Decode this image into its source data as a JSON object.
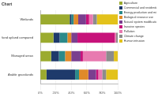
{
  "chart_data": {
    "type": "bar",
    "title": "Chart",
    "orientation": "horizontal",
    "stacked": true,
    "grid": true,
    "legend": "right",
    "categories": [
      "Wetlands",
      "Lowland upland compared",
      "Managed areas",
      "Arable grasslands"
    ],
    "series": [
      {
        "name": "Agriculture",
        "color": "#9bab2f",
        "values": [
          38,
          17,
          14,
          8
        ]
      },
      {
        "name": "Commercial and residential",
        "color": "#1e3a6b",
        "values": [
          2,
          8,
          10,
          37
        ]
      },
      {
        "name": "Energy production and mining",
        "color": "#2b8a8a",
        "values": [
          3,
          10,
          8,
          5
        ]
      },
      {
        "name": "Biological resource use",
        "color": "#e08a2a",
        "values": [
          6,
          5,
          8,
          12
        ]
      },
      {
        "name": "Natural system modifications",
        "color": "#7a3f8f",
        "values": [
          10,
          8,
          12,
          10
        ]
      },
      {
        "name": "Invasive species",
        "color": "#c7127a",
        "values": [
          4,
          48,
          3,
          3
        ]
      },
      {
        "name": "Pollution",
        "color": "#e87ab0",
        "values": [
          5,
          2,
          30,
          5
        ]
      },
      {
        "name": "Climate change",
        "color": "#8c8c8c",
        "values": [
          5,
          2,
          10,
          5
        ]
      },
      {
        "name": "Human intrusion",
        "color": "#e3c21b",
        "values": [
          27,
          0,
          5,
          15
        ]
      }
    ],
    "xlim": [
      0,
      100
    ],
    "xticks": [
      {
        "value": 0,
        "label": "0%"
      },
      {
        "value": 20,
        "label": "20%"
      },
      {
        "value": 40,
        "label": "40%"
      },
      {
        "value": 60,
        "label": "60%"
      },
      {
        "value": 80,
        "label": "80%"
      },
      {
        "value": 100,
        "label": "100%"
      }
    ]
  }
}
